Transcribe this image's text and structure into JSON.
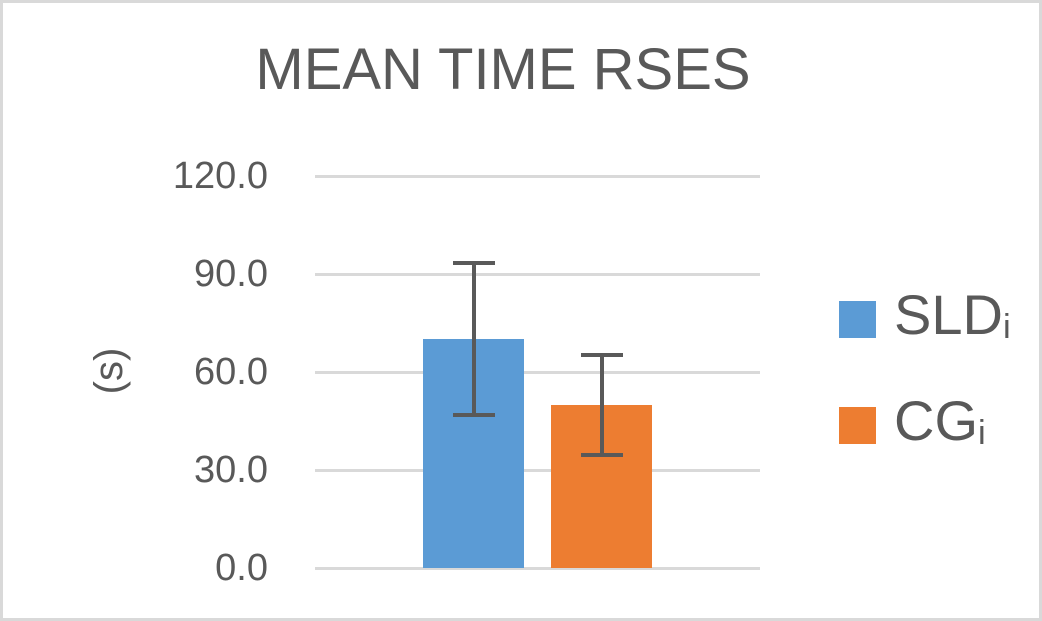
{
  "canvas": {
    "background": "#FFFFFF",
    "border_color": "#D9D9D9"
  },
  "chart_data": {
    "type": "bar",
    "title": "MEAN TIME RSES",
    "ylabel": "(s)",
    "xlabel": "",
    "categories": [
      ""
    ],
    "series": [
      {
        "name": "SLDi",
        "label_base": "SLD",
        "label_sub": "i",
        "color": "#5B9BD5",
        "values": [
          70.0
        ],
        "errors": [
          23.3
        ]
      },
      {
        "name": "CGi",
        "label_base": "CG",
        "label_sub": "i",
        "color": "#ED7D31",
        "values": [
          50.0
        ],
        "errors": [
          15.3
        ]
      }
    ],
    "ylim": [
      0,
      120
    ],
    "yticks": [
      0,
      30,
      60,
      90,
      120
    ],
    "ytick_labels": [
      "0.0",
      "30.0",
      "60.0",
      "90.0",
      "120.0"
    ],
    "grid": true,
    "grid_color": "#D9D9D9",
    "text_color": "#595959",
    "error_bar_color": "#595959",
    "error_bars": true,
    "legend_position": "right"
  }
}
